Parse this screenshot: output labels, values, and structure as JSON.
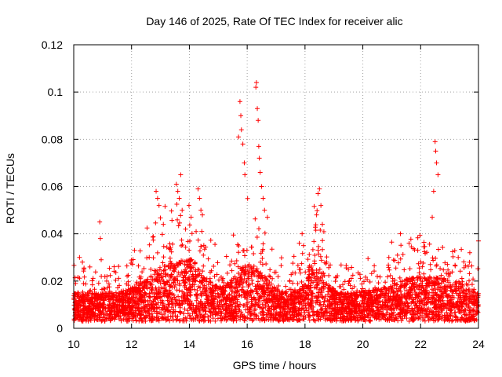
{
  "chart_data": {
    "type": "scatter",
    "title": "Day 146 of 2025, Rate Of TEC Index for receiver alic",
    "xlabel": "GPS time / hours",
    "ylabel": "ROTI / TECUs",
    "xlim": [
      10,
      24
    ],
    "ylim": [
      0,
      0.12
    ],
    "x_ticks": [
      10,
      12,
      14,
      16,
      18,
      20,
      22,
      24
    ],
    "y_ticks": [
      0,
      0.02,
      0.04,
      0.06,
      0.08,
      0.1,
      0.12
    ],
    "x_tick_labels": [
      "10",
      "12",
      "14",
      "16",
      "18",
      "20",
      "22",
      "24"
    ],
    "y_tick_labels": [
      "0",
      "0.02",
      "0.04",
      "0.06",
      "0.08",
      "0.1",
      "0.12"
    ],
    "grid": true,
    "marker": "+",
    "color": "#ff0000",
    "series": [
      {
        "name": "ROTI",
        "x": [
          10.9,
          10.92,
          10.95,
          12.85,
          12.9,
          12.95,
          13.1,
          13.55,
          13.6,
          13.65,
          13.7,
          13.75,
          14.3,
          14.35,
          14.4,
          14.45,
          15.7,
          15.75,
          15.78,
          15.8,
          15.85,
          15.9,
          15.92,
          16.3,
          16.32,
          16.35,
          16.38,
          16.4,
          16.42,
          16.45,
          16.5,
          16.55,
          16.6,
          16.7,
          18.4,
          18.45,
          18.5,
          18.55,
          18.6,
          22.4,
          22.45,
          22.5,
          22.52,
          22.55,
          22.6,
          21.3,
          21.6,
          21.9,
          23.3,
          23.7,
          24.0,
          10.2,
          10.3,
          10.35,
          12.1,
          17.8,
          17.9,
          19.5,
          20.5,
          20.9
        ],
        "y": [
          0.045,
          0.038,
          0.029,
          0.058,
          0.055,
          0.052,
          0.044,
          0.061,
          0.058,
          0.055,
          0.065,
          0.05,
          0.059,
          0.055,
          0.05,
          0.048,
          0.081,
          0.096,
          0.09,
          0.084,
          0.078,
          0.07,
          0.065,
          0.102,
          0.104,
          0.093,
          0.088,
          0.077,
          0.072,
          0.066,
          0.06,
          0.055,
          0.05,
          0.047,
          0.048,
          0.057,
          0.059,
          0.052,
          0.044,
          0.047,
          0.058,
          0.079,
          0.075,
          0.07,
          0.065,
          0.04,
          0.036,
          0.033,
          0.03,
          0.032,
          0.037,
          0.03,
          0.028,
          0.025,
          0.033,
          0.036,
          0.04,
          0.025,
          0.022,
          0.03
        ]
      }
    ]
  }
}
